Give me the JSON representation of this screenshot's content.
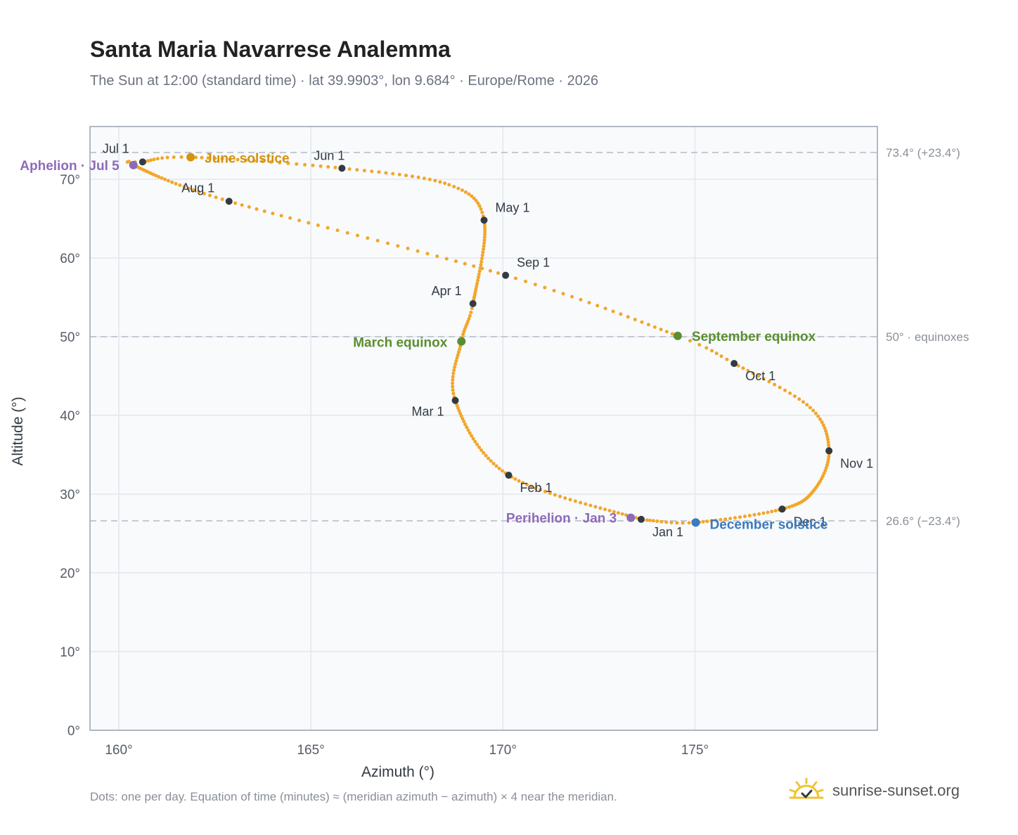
{
  "header": {
    "title": "Santa Maria Navarrese Analemma",
    "subtitle": "The Sun at 12:00 (standard time) · lat 39.9903°, lon 9.684° · Europe/Rome · 2026"
  },
  "footer": {
    "note": "Dots: one per day. Equation of time (minutes) ≈ (meridian azimuth − azimuth) × 4 near the meridian.",
    "brand": "sunrise-sunset.org"
  },
  "colors": {
    "curve": "#f2a629",
    "month_marker": "#333a44",
    "equinox": "#5a8f2e",
    "june_solstice": "#d4920f",
    "december_solstice": "#3a7abf",
    "apsis": "#8e6bb8",
    "plot_bg": "#f8fafc",
    "grid": "#e3e8ee",
    "reference_line": "#b8bfc8"
  },
  "chart_data": {
    "type": "scatter",
    "xlabel": "Azimuth (°)",
    "ylabel": "Altitude (°)",
    "xlim": [
      159.25,
      179.75
    ],
    "ylim": [
      0,
      76.7
    ],
    "x_ticks": [
      160,
      165,
      170,
      175
    ],
    "x_tick_labels": [
      "160°",
      "165°",
      "170°",
      "175°"
    ],
    "y_ticks": [
      0,
      10,
      20,
      30,
      40,
      50,
      60,
      70
    ],
    "y_tick_labels": [
      "0°",
      "10°",
      "20°",
      "30°",
      "40°",
      "50°",
      "60°",
      "70°"
    ],
    "grid": true,
    "reference_lines": [
      {
        "y": 73.4,
        "label": "73.4° (+23.4°)"
      },
      {
        "y": 50.0,
        "label": "50° · equinoxes"
      },
      {
        "y": 26.6,
        "label": "26.6° (−23.4°)"
      }
    ],
    "series": [
      {
        "points": [
          {
            "day": 1,
            "x": 173.6,
            "y": 26.8
          },
          {
            "day": 32,
            "x": 170.15,
            "y": 32.4
          },
          {
            "day": 60,
            "x": 168.76,
            "y": 41.9
          },
          {
            "day": 79,
            "x": 168.92,
            "y": 49.4
          },
          {
            "day": 91,
            "x": 169.22,
            "y": 54.2
          },
          {
            "day": 121,
            "x": 169.51,
            "y": 64.8
          },
          {
            "day": 135,
            "x": 168.6,
            "y": 69.3
          },
          {
            "day": 152,
            "x": 165.81,
            "y": 71.4
          },
          {
            "day": 172,
            "x": 161.87,
            "y": 72.8
          },
          {
            "day": 182,
            "x": 160.62,
            "y": 72.2
          },
          {
            "day": 186,
            "x": 160.38,
            "y": 71.8
          },
          {
            "day": 213,
            "x": 162.87,
            "y": 67.2
          },
          {
            "day": 244,
            "x": 170.07,
            "y": 57.8
          },
          {
            "day": 266,
            "x": 174.55,
            "y": 50.1
          },
          {
            "day": 274,
            "x": 176.02,
            "y": 46.6
          },
          {
            "day": 290,
            "x": 178.0,
            "y": 41.0
          },
          {
            "day": 305,
            "x": 178.49,
            "y": 35.5
          },
          {
            "day": 320,
            "x": 178.1,
            "y": 30.5
          },
          {
            "day": 335,
            "x": 177.27,
            "y": 28.1
          },
          {
            "day": 355,
            "x": 175.02,
            "y": 26.4
          },
          {
            "day": 365,
            "x": 173.75,
            "y": 26.7
          }
        ]
      }
    ],
    "month_markers": [
      {
        "label": "Jan 1",
        "x": 173.6,
        "y": 26.8
      },
      {
        "label": "Feb 1",
        "x": 170.15,
        "y": 32.4
      },
      {
        "label": "Mar 1",
        "x": 168.76,
        "y": 41.9
      },
      {
        "label": "Apr 1",
        "x": 169.22,
        "y": 54.2
      },
      {
        "label": "May 1",
        "x": 169.51,
        "y": 64.8
      },
      {
        "label": "Jun 1",
        "x": 165.81,
        "y": 71.4
      },
      {
        "label": "Jul 1",
        "x": 160.62,
        "y": 72.2
      },
      {
        "label": "Aug 1",
        "x": 162.87,
        "y": 67.2
      },
      {
        "label": "Sep 1",
        "x": 170.07,
        "y": 57.8
      },
      {
        "label": "Oct 1",
        "x": 176.02,
        "y": 46.6
      },
      {
        "label": "Nov 1",
        "x": 178.49,
        "y": 35.5
      },
      {
        "label": "Dec 1",
        "x": 177.27,
        "y": 28.1
      }
    ],
    "events": [
      {
        "label": "March equinox",
        "x": 168.92,
        "y": 49.4,
        "kind": "equinox"
      },
      {
        "label": "September equinox",
        "x": 174.55,
        "y": 50.1,
        "kind": "equinox"
      },
      {
        "label": "June solstice",
        "x": 161.87,
        "y": 72.8,
        "kind": "june_solstice"
      },
      {
        "label": "December solstice",
        "x": 175.02,
        "y": 26.4,
        "kind": "december_solstice"
      },
      {
        "label": "Aphelion · Jul 5",
        "x": 160.38,
        "y": 71.8,
        "kind": "apsis"
      },
      {
        "label": "Perihelion · Jan 3",
        "x": 173.33,
        "y": 27.0,
        "kind": "apsis"
      }
    ]
  }
}
